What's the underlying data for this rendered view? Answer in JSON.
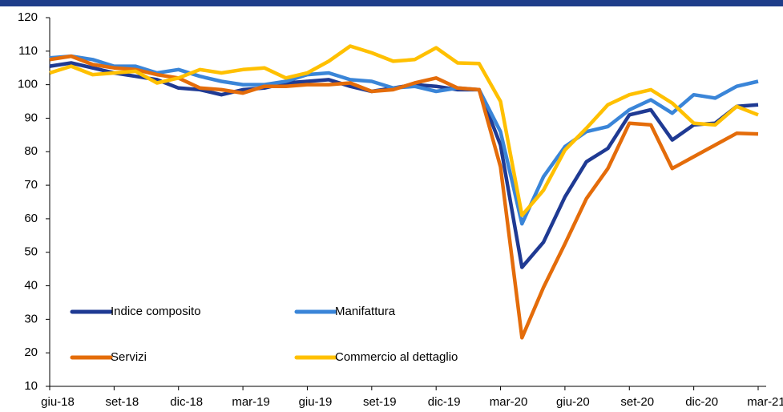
{
  "chart_data": {
    "type": "line",
    "categories": [
      "giu-18",
      null,
      null,
      "set-18",
      null,
      null,
      "dic-18",
      null,
      null,
      "mar-19",
      null,
      null,
      "giu-19",
      null,
      null,
      "set-19",
      null,
      null,
      "dic-19",
      null,
      null,
      "mar-20",
      null,
      null,
      "giu-20",
      null,
      null,
      "set-20",
      null,
      null,
      "dic-20",
      null,
      null,
      "mar-21"
    ],
    "series": [
      {
        "name": "Indice composito",
        "color": "#1f3a93",
        "values": [
          105.5,
          106.5,
          105,
          103.5,
          102.5,
          101.5,
          99,
          98.5,
          97,
          98.5,
          99,
          100.5,
          101,
          101.5,
          99.5,
          98,
          99,
          100,
          99.5,
          98.5,
          98.5,
          82,
          45.5,
          53,
          66.5,
          77,
          81,
          91,
          92.5,
          83.5,
          88,
          88.5,
          93.5,
          94
        ]
      },
      {
        "name": "Manifattura",
        "color": "#3a85d8",
        "values": [
          108,
          108.5,
          107.5,
          105.5,
          105.5,
          103.5,
          104.5,
          102.5,
          101,
          100,
          100,
          101,
          103,
          103.5,
          101.5,
          101,
          99,
          99.5,
          98,
          99,
          98.5,
          86,
          58.5,
          72.5,
          81.5,
          86,
          87.5,
          92.5,
          95.5,
          91.5,
          97,
          96,
          99.5,
          101
        ]
      },
      {
        "name": "Servizi",
        "color": "#e46c0a",
        "values": [
          107.5,
          108.5,
          106,
          105,
          104.5,
          103,
          102,
          99,
          98.5,
          97.5,
          99.5,
          99.5,
          100,
          100,
          100.5,
          98,
          98.5,
          100.5,
          102,
          99,
          98.5,
          75.5,
          24.5,
          39.5,
          52.5,
          66,
          75,
          88.5,
          88,
          75,
          78.5,
          82,
          85.5,
          85.3
        ]
      },
      {
        "name": "Commercio al dettaglio",
        "color": "#ffc000",
        "values": [
          103.5,
          105.5,
          103,
          103.5,
          104,
          100.5,
          102,
          104.5,
          103.5,
          104.5,
          105,
          102,
          103.5,
          107,
          111.5,
          109.5,
          107,
          107.5,
          111,
          106.5,
          106.3,
          95,
          61,
          68.5,
          80.5,
          87,
          94,
          97,
          98.5,
          94.5,
          88.5,
          88,
          93.5,
          91
        ]
      }
    ],
    "ylim": [
      10,
      120
    ],
    "yticks": [
      10,
      20,
      30,
      40,
      50,
      60,
      70,
      80,
      90,
      100,
      110,
      120
    ],
    "grid": false,
    "legend": "lower left"
  }
}
